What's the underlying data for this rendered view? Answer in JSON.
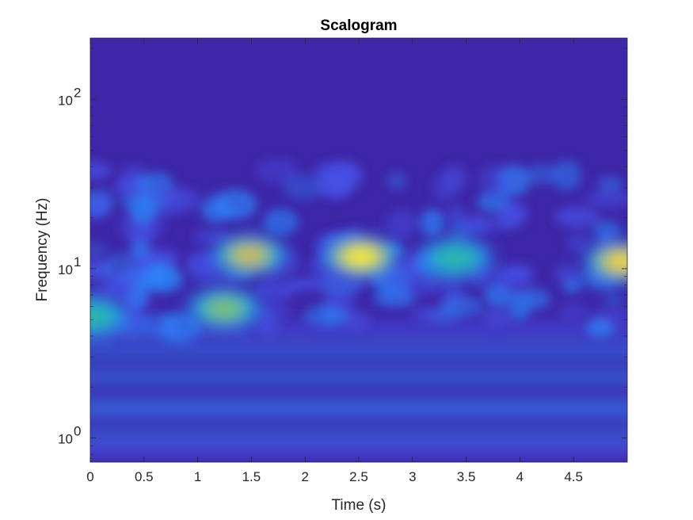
{
  "chart_data": {
    "type": "heatmap",
    "title": "Scalogram",
    "xlabel": "Time (s)",
    "ylabel": "Frequency (Hz)",
    "xlim": [
      0,
      5
    ],
    "ylim": [
      0.72,
      230
    ],
    "yscale": "log",
    "x_ticks": [
      0,
      0.5,
      1,
      1.5,
      2,
      2.5,
      3,
      3.5,
      4,
      4.5
    ],
    "x_tick_labels": [
      "0",
      "0.5",
      "1",
      "1.5",
      "2",
      "2.5",
      "3",
      "3.5",
      "4",
      "4.5"
    ],
    "y_ticks": [
      1,
      10,
      100
    ],
    "y_tick_base": [
      "10",
      "10",
      "10"
    ],
    "y_tick_exponents": [
      "0",
      "1",
      "2"
    ],
    "colormap": "parula",
    "colormap_stops": [
      "#3e26a8",
      "#4653e9",
      "#2d82f8",
      "#17a8de",
      "#30bc9c",
      "#8fc261",
      "#e7ba43",
      "#fedd2a",
      "#f9fb0e"
    ],
    "grid": false,
    "hotspots": [
      {
        "time": 1.25,
        "frequency": 5.8,
        "magnitude": 0.62
      },
      {
        "time": 1.48,
        "frequency": 12.0,
        "magnitude": 0.7
      },
      {
        "time": 2.52,
        "frequency": 11.8,
        "magnitude": 0.98
      },
      {
        "time": 3.4,
        "frequency": 11.5,
        "magnitude": 0.45
      },
      {
        "time": 4.95,
        "frequency": 11.0,
        "magnitude": 0.9
      },
      {
        "time": 0.02,
        "frequency": 5.2,
        "magnitude": 0.5
      }
    ]
  }
}
